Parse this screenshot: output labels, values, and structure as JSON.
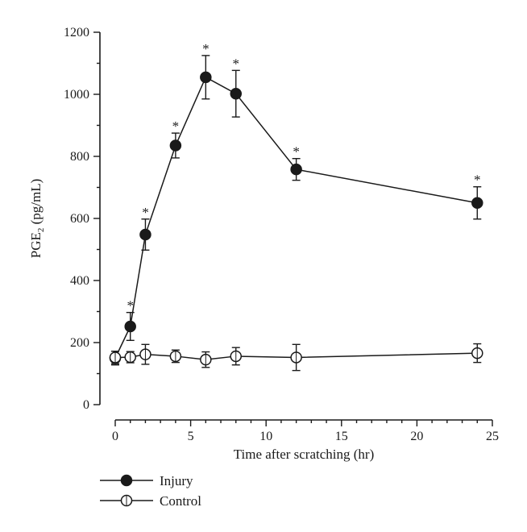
{
  "chart_data": {
    "type": "line",
    "xlabel": "Time after scratching (hr)",
    "ylabel": {
      "main": "PGE",
      "sub": "2",
      "unit": " (pg/mL)"
    },
    "xlim": [
      -1,
      25.5
    ],
    "ylim": [
      0,
      1200
    ],
    "xticks": [
      0,
      5,
      10,
      15,
      20,
      25
    ],
    "yticks": [
      0,
      200,
      400,
      600,
      800,
      1000,
      1200
    ],
    "xminor": [
      0,
      1,
      2,
      3,
      4,
      5,
      6,
      7,
      8,
      9,
      10,
      11,
      12,
      13,
      14,
      15,
      16,
      17,
      18,
      19,
      20,
      21,
      22,
      23,
      24,
      25
    ],
    "yminor": [
      0,
      100,
      200,
      300,
      400,
      500,
      600,
      700,
      800,
      900,
      1000,
      1100,
      1200
    ],
    "grid": false,
    "legend_position": "bottom-left",
    "significance_marker": "*",
    "series": [
      {
        "name": "Injury",
        "marker": "filled-circle",
        "x": [
          0,
          1,
          2,
          4,
          6,
          8,
          12,
          24
        ],
        "y": [
          150,
          252,
          548,
          835,
          1055,
          1002,
          758,
          650
        ],
        "err": [
          22,
          45,
          50,
          40,
          70,
          75,
          35,
          52
        ],
        "significant": [
          false,
          true,
          true,
          true,
          true,
          true,
          true,
          true
        ]
      },
      {
        "name": "Control",
        "marker": "open-circle",
        "x": [
          0,
          1,
          2,
          4,
          6,
          8,
          12,
          24
        ],
        "y": [
          152,
          153,
          162,
          156,
          145,
          156,
          152,
          166
        ],
        "err": [
          20,
          18,
          32,
          20,
          25,
          28,
          42,
          30
        ],
        "significant": [
          false,
          false,
          false,
          false,
          false,
          false,
          false,
          false
        ]
      }
    ]
  }
}
